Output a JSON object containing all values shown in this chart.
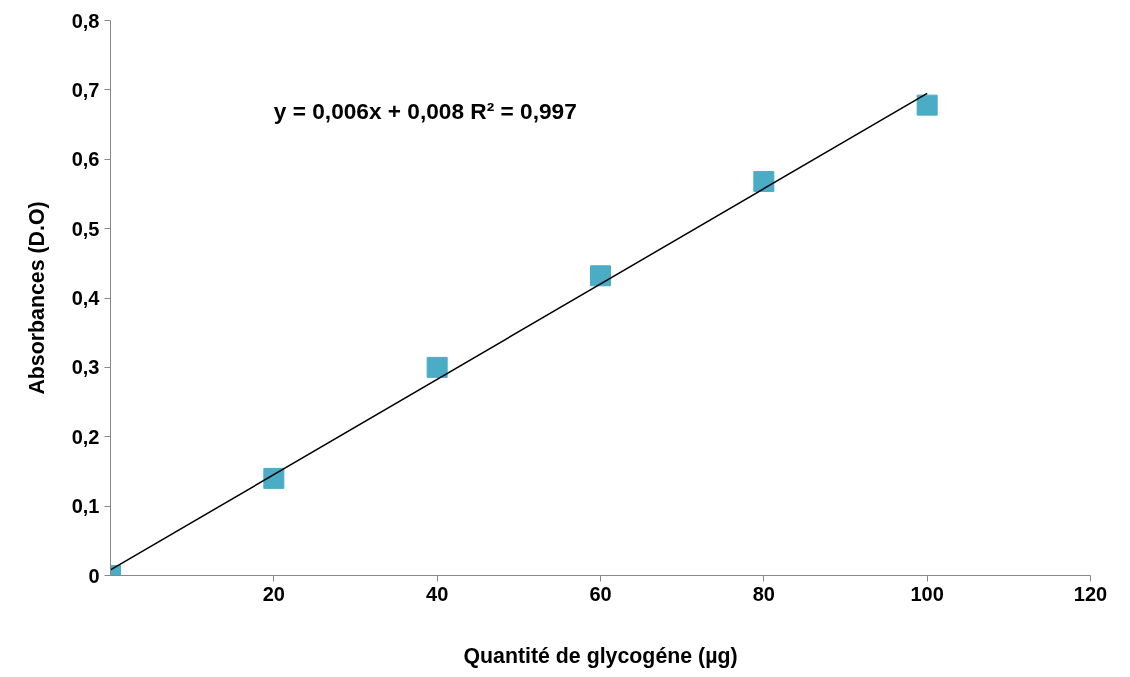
{
  "chart_data": {
    "type": "scatter",
    "xlabel": "Quantité de glycogéne (µg)",
    "ylabel": "Absorbances (D.O)",
    "annotations": [
      "y = 0,006x + 0,008   R² = 0,997"
    ],
    "xlim": [
      0,
      120
    ],
    "xticks": [
      20,
      40,
      60,
      80,
      100,
      120
    ],
    "ylim": [
      0,
      0.8
    ],
    "yticks": [
      {
        "value": 0,
        "label": "0"
      },
      {
        "value": 0.1,
        "label": "0,1"
      },
      {
        "value": 0.2,
        "label": "0,2"
      },
      {
        "value": 0.3,
        "label": "0,3"
      },
      {
        "value": 0.4,
        "label": "0,4"
      },
      {
        "value": 0.5,
        "label": "0,5"
      },
      {
        "value": 0.6,
        "label": "0,6"
      },
      {
        "value": 0.7,
        "label": "0,7"
      },
      {
        "value": 0.8,
        "label": "0,8"
      }
    ],
    "grid": false,
    "marker": "square",
    "series": [
      {
        "color": "#4bacc6",
        "x": [
          0,
          20,
          40,
          60,
          80,
          100
        ],
        "values": [
          0,
          0.14,
          0.3,
          0.432,
          0.568,
          0.678
        ]
      },
      {
        "type": "line",
        "color": "#000000",
        "marker": "none",
        "x": [
          0,
          100
        ],
        "values": [
          0.008,
          0.695
        ]
      }
    ]
  }
}
